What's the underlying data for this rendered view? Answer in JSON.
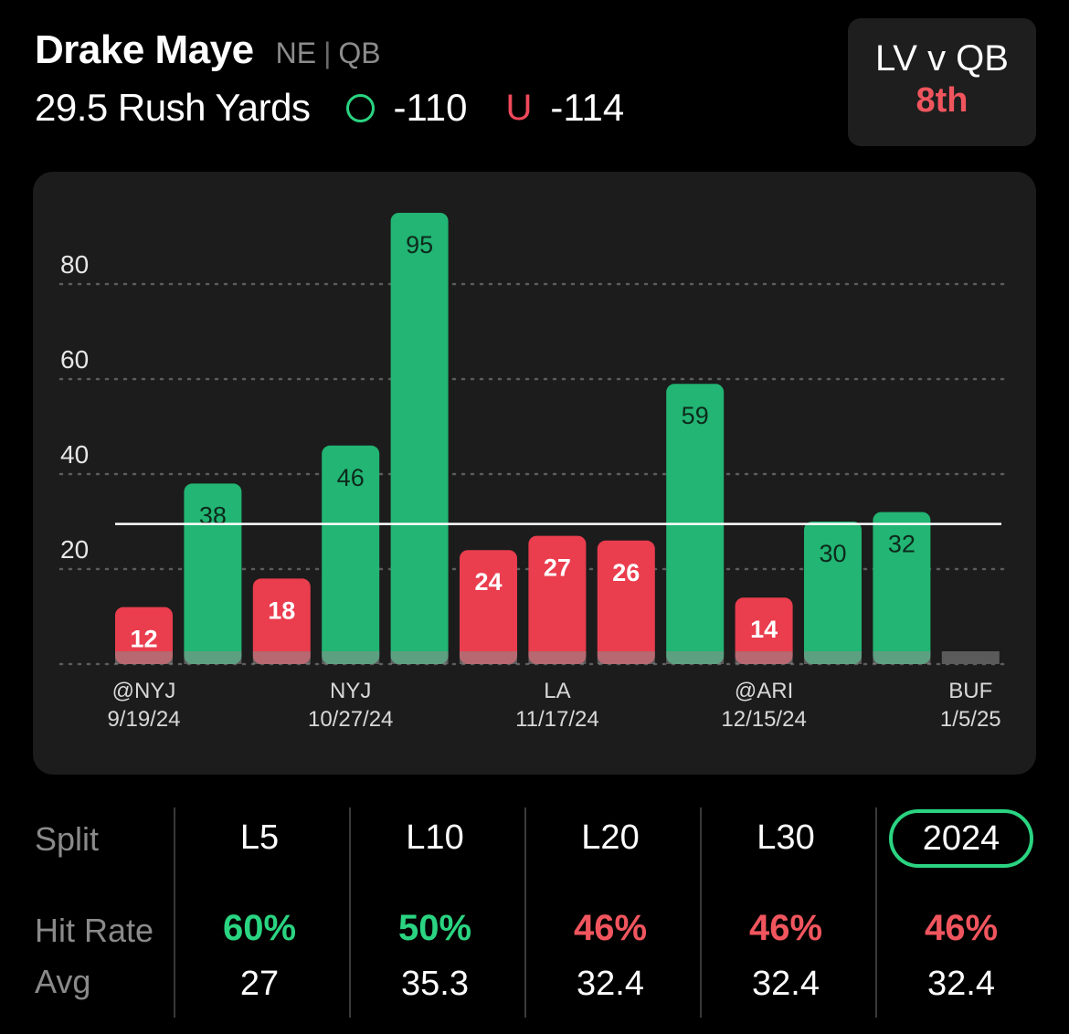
{
  "header": {
    "player_name": "Drake Maye",
    "team": "NE",
    "position": "QB",
    "prop_label": "29.5 Rush Yards",
    "over_odds": "-110",
    "under_glyph": "U",
    "under_odds": "-114"
  },
  "matchup": {
    "label": "LV v QB",
    "rank": "8th"
  },
  "chart_data": {
    "type": "bar",
    "line": 29.5,
    "ylim": [
      0,
      95
    ],
    "yticks": [
      20,
      40,
      60,
      80
    ],
    "values": [
      12,
      38,
      18,
      46,
      95,
      24,
      27,
      26,
      59,
      14,
      30,
      32,
      0
    ],
    "x_labels": [
      {
        "index": 0,
        "opponent": "@NYJ",
        "date": "9/19/24"
      },
      {
        "index": 3,
        "opponent": "NYJ",
        "date": "10/27/24"
      },
      {
        "index": 6,
        "opponent": "LA",
        "date": "11/17/24"
      },
      {
        "index": 9,
        "opponent": "@ARI",
        "date": "12/15/24"
      },
      {
        "index": 12,
        "opponent": "BUF",
        "date": "1/5/25"
      }
    ],
    "colors": {
      "over": "#22b573",
      "under": "#ea3d4e",
      "pending": "#5a5a5a",
      "line": "#ffffff",
      "grid": "#5c5c5c"
    }
  },
  "table": {
    "split_label": "Split",
    "hit_rate_label": "Hit Rate",
    "avg_label": "Avg",
    "colors": {
      "good": "#2ad481",
      "bad": "#f0555e"
    },
    "columns": [
      {
        "split": "L5",
        "hit_rate": "60%",
        "status": "good",
        "avg": "27",
        "active": false
      },
      {
        "split": "L10",
        "hit_rate": "50%",
        "status": "good",
        "avg": "35.3",
        "active": false
      },
      {
        "split": "L20",
        "hit_rate": "46%",
        "status": "bad",
        "avg": "32.4",
        "active": false
      },
      {
        "split": "L30",
        "hit_rate": "46%",
        "status": "bad",
        "avg": "32.4",
        "active": false
      },
      {
        "split": "2024",
        "hit_rate": "46%",
        "status": "bad",
        "avg": "32.4",
        "active": true
      }
    ]
  }
}
